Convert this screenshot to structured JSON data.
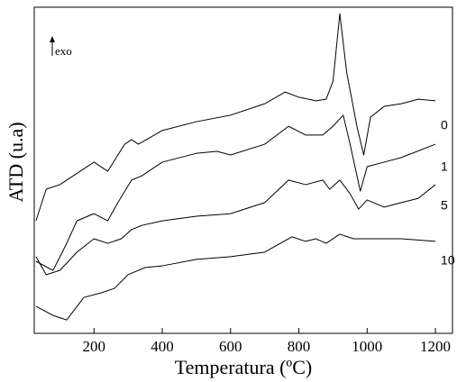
{
  "chart_data": {
    "type": "line",
    "xlabel": "Temperatura (ºC)",
    "ylabel": "ATD (u.a)",
    "annotation": "exo",
    "xlim": [
      25,
      1250
    ],
    "xticks": [
      200,
      400,
      600,
      800,
      1000,
      1200
    ],
    "ylim": [
      0,
      100
    ],
    "series": [
      {
        "name": "0",
        "color": "#000000",
        "x": [
          30,
          60,
          100,
          200,
          240,
          290,
          310,
          330,
          400,
          500,
          600,
          700,
          760,
          800,
          850,
          880,
          900,
          920,
          940,
          970,
          990,
          1010,
          1050,
          1100,
          1150,
          1200
        ],
        "values": [
          34.5,
          44.2,
          45.6,
          52.5,
          49.7,
          58,
          59.4,
          58,
          62.2,
          64.9,
          66.9,
          70.4,
          74,
          72.4,
          71.3,
          71.8,
          77.3,
          98,
          80.1,
          63.5,
          54.7,
          66.3,
          69.6,
          70.4,
          71.8,
          71.3
        ]
      },
      {
        "name": "1",
        "color": "#000000",
        "x": [
          30,
          80,
          120,
          150,
          200,
          240,
          270,
          310,
          340,
          400,
          500,
          560,
          600,
          700,
          770,
          820,
          870,
          900,
          930,
          950,
          980,
          1000,
          1050,
          1100,
          1200
        ],
        "values": [
          22.1,
          19.3,
          27.6,
          34.5,
          36.7,
          34.5,
          40.1,
          47,
          48.3,
          52.5,
          55.2,
          55.8,
          54.7,
          58,
          63.5,
          60.8,
          60.8,
          63.5,
          66.9,
          58,
          43.6,
          51.1,
          52.5,
          53.9,
          58
        ]
      },
      {
        "name": "5",
        "color": "#000000",
        "x": [
          30,
          60,
          100,
          150,
          200,
          240,
          280,
          310,
          340,
          400,
          500,
          600,
          700,
          770,
          820,
          870,
          890,
          920,
          950,
          975,
          1000,
          1050,
          1100,
          1150,
          1200
        ],
        "values": [
          23.5,
          18,
          19.3,
          24.9,
          29,
          27.6,
          29,
          31.8,
          33.1,
          34.5,
          35.9,
          36.7,
          40.1,
          47,
          45.6,
          47,
          44.2,
          47,
          42.8,
          38.1,
          40.9,
          38.7,
          40.1,
          41.4,
          45.6
        ]
      },
      {
        "name": "10",
        "color": "#000000",
        "x": [
          30,
          80,
          120,
          170,
          220,
          260,
          300,
          350,
          400,
          500,
          600,
          700,
          780,
          820,
          850,
          880,
          920,
          960,
          1000,
          1100,
          1200
        ],
        "values": [
          8.3,
          5.5,
          4.1,
          11,
          12.4,
          13.8,
          18,
          20.2,
          20.7,
          22.7,
          23.5,
          24.9,
          29.6,
          28.2,
          29,
          27.6,
          30.4,
          29,
          29,
          29,
          28.2
        ]
      }
    ]
  }
}
